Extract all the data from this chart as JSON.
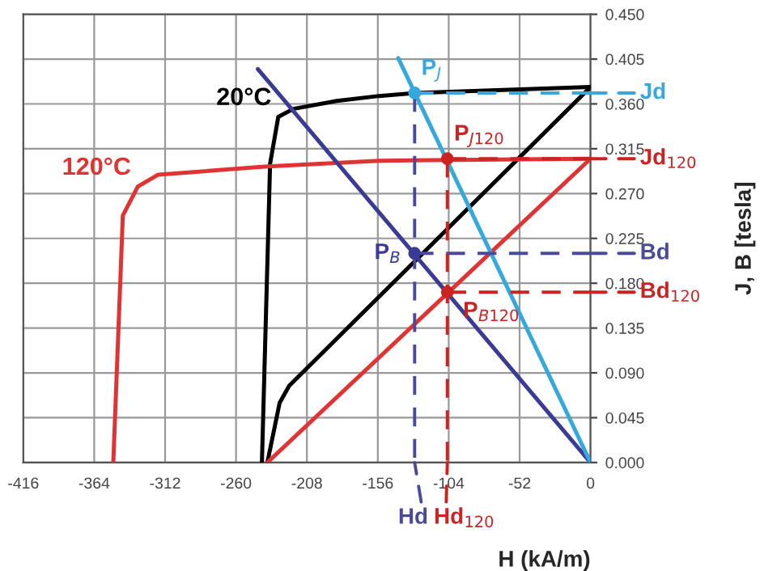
{
  "chart_data": {
    "type": "line",
    "xlabel": "H (kA/m)",
    "ylabel": "J, B [tesla]",
    "xlim": [
      -416,
      0
    ],
    "xticks": [
      -416,
      -364,
      -312,
      -260,
      -208,
      -156,
      -104,
      -52,
      0
    ],
    "ylim": [
      0,
      0.45
    ],
    "yticks": [
      {
        "value": 0,
        "label": "0.000"
      },
      {
        "value": 0.045,
        "label": "0.045"
      },
      {
        "value": 0.09,
        "label": "0.090"
      },
      {
        "value": 0.135,
        "label": "0.135"
      },
      {
        "value": 0.18,
        "label": "0.180"
      },
      {
        "value": 0.225,
        "label": "0.225"
      },
      {
        "value": 0.27,
        "label": "0.270"
      },
      {
        "value": 0.315,
        "label": "0.315"
      },
      {
        "value": 0.36,
        "label": "0.360"
      },
      {
        "value": 0.405,
        "label": "0.405"
      },
      {
        "value": 0.45,
        "label": "0.450"
      }
    ],
    "grid": true,
    "legend": "right",
    "marker": "none",
    "line_style": "solid",
    "series": [
      {
        "name": "20°C",
        "color": "#000000",
        "x": [
          -241,
          -235,
          -229,
          -218,
          -186,
          -155,
          -129,
          0
        ],
        "values": [
          0,
          0.3,
          0.347,
          0.355,
          0.363,
          0.368,
          0.371,
          0.377
        ]
      },
      {
        "color": "#000000",
        "x": [
          -237,
          -228,
          -221,
          0
        ],
        "values": [
          0,
          0.06,
          0.077,
          0.377
        ]
      },
      {
        "name": "120°C",
        "color": "#e03333",
        "x": [
          -350,
          -343,
          -332,
          -317,
          -239,
          -155,
          0
        ],
        "values": [
          0,
          0.248,
          0.277,
          0.289,
          0.297,
          0.303,
          0.305
        ]
      },
      {
        "color": "#e03333",
        "x": [
          -237,
          0
        ],
        "values": [
          0,
          0.305
        ]
      },
      {
        "color": "#3b3b96",
        "x": [
          -244,
          0
        ],
        "values": [
          0.395,
          0
        ]
      },
      {
        "color": "#35a8dc",
        "x": [
          -141,
          0
        ],
        "values": [
          0.406,
          0
        ]
      },
      {
        "name": "Jd",
        "color": "#35a8dc",
        "line_style": "dashed",
        "x": [
          -129,
          0
        ],
        "values": [
          0.371,
          0.371
        ]
      },
      {
        "name": "Bd",
        "color": "#4a4a9a",
        "line_style": "dashed",
        "x": [
          -129,
          0
        ],
        "values": [
          0.21,
          0.21
        ]
      },
      {
        "name": "Hd",
        "color": "#4a4a9a",
        "line_style": "dashed",
        "x": [
          -129,
          -129
        ],
        "values": [
          0.371,
          0
        ]
      },
      {
        "name": "Jd$_{120}$",
        "color": "#cc2222",
        "line_style": "dashed",
        "x": [
          -105,
          0
        ],
        "values": [
          0.305,
          0.305
        ]
      },
      {
        "name": "Bd$_{120}$",
        "color": "#cc2222",
        "line_style": "dashed",
        "x": [
          -105,
          0
        ],
        "values": [
          0.171,
          0.171
        ]
      },
      {
        "name": "Hd$_{120}$",
        "color": "#cc2222",
        "line_style": "dashed",
        "x": [
          -105,
          -105
        ],
        "values": [
          0.305,
          0
        ]
      },
      {
        "name": "P$_{J}$",
        "type": "scatter",
        "marker": "circle",
        "color": "#35a8dc",
        "x": [
          -129
        ],
        "values": [
          0.371
        ]
      },
      {
        "name": "P$_{B}$",
        "type": "scatter",
        "marker": "circle",
        "color": "#3b3b96",
        "x": [
          -129
        ],
        "values": [
          0.21
        ]
      },
      {
        "name": "P$_{J120}$",
        "type": "scatter",
        "marker": "circle",
        "color": "#cc2222",
        "x": [
          -105
        ],
        "values": [
          0.305
        ]
      },
      {
        "name": "P$_{B120}$",
        "type": "scatter",
        "marker": "circle",
        "color": "#cc2222",
        "x": [
          -105
        ],
        "values": [
          0.171
        ]
      }
    ]
  }
}
